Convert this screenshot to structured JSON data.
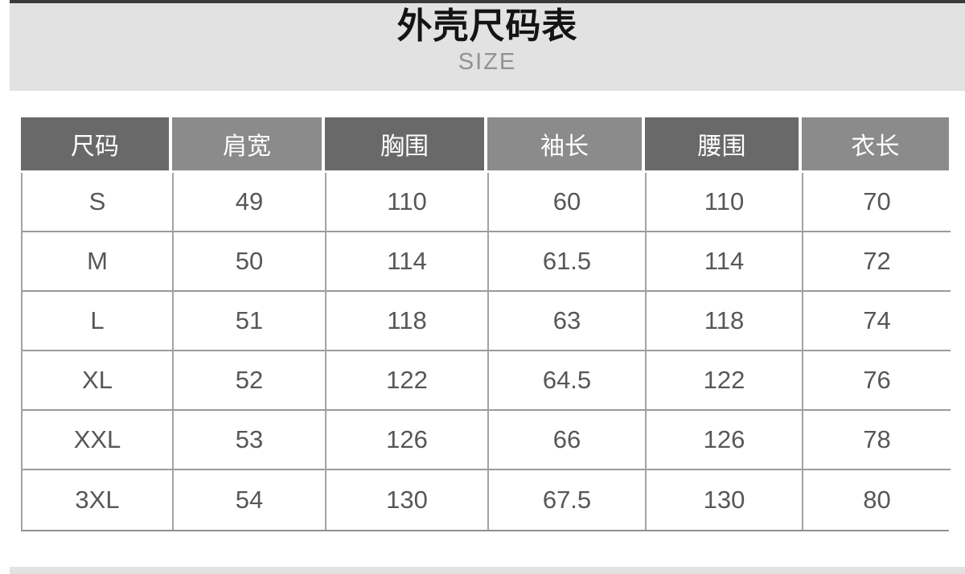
{
  "banner": {
    "title": "外壳尺码表",
    "subtitle": "SIZE",
    "background_color": "#e2e2e2",
    "top_rule_color": "#3a3a3a"
  },
  "colors": {
    "header_cell_dark": "#696969",
    "header_cell_light": "#8b8b8b",
    "header_text": "#ffffff",
    "body_text": "#57575a",
    "grid_border": "#9a9a9a"
  },
  "chart_data": {
    "type": "table",
    "title": "外壳尺码表",
    "subtitle": "SIZE",
    "columns": [
      "尺码",
      "肩宽",
      "胸围",
      "袖长",
      "腰围",
      "衣长"
    ],
    "rows": [
      [
        "S",
        "49",
        "110",
        "60",
        "110",
        "70"
      ],
      [
        "M",
        "50",
        "114",
        "61.5",
        "114",
        "72"
      ],
      [
        "L",
        "51",
        "118",
        "63",
        "118",
        "74"
      ],
      [
        "XL",
        "52",
        "122",
        "64.5",
        "122",
        "76"
      ],
      [
        "XXL",
        "53",
        "126",
        "66",
        "126",
        "78"
      ],
      [
        "3XL",
        "54",
        "130",
        "67.5",
        "130",
        "80"
      ]
    ],
    "layout_hints": {
      "header_fill_alternating": [
        "dark",
        "light",
        "dark",
        "light",
        "dark",
        "light"
      ],
      "grid": "on",
      "header_gap_color": "#ffffff"
    }
  }
}
